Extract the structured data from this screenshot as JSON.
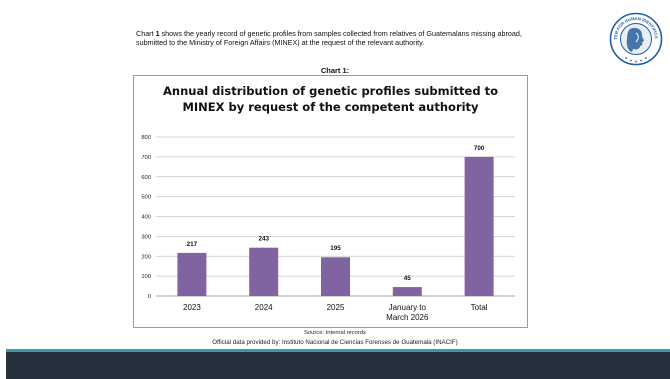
{
  "intro": {
    "chart_word": "Chart",
    "chart_number": "1",
    "text": "shows the yearly record of genetic profiles from samples collected from relatives of Guatemalans missing abroad, submitted to the Ministry of Foreign Affairs (MINEX) at the request of the relevant authority."
  },
  "chart_caption": "Chart 1:",
  "logo": {
    "text": "CENTER FOR HUMAN IDENTIFICATION",
    "colors": {
      "ring": "#1f5fa8",
      "inner": "#e9eef5",
      "profile": "#2a5f9e"
    }
  },
  "chart_data": {
    "type": "bar",
    "title_line1": "Annual distribution of genetic profiles submitted to",
    "title_line2": "MINEX by request of the competent authority",
    "categories": [
      [
        "2023"
      ],
      [
        "2024"
      ],
      [
        "2025"
      ],
      [
        "January to",
        "March 2026"
      ],
      [
        "Total"
      ]
    ],
    "values": [
      217,
      243,
      195,
      45,
      700
    ],
    "ylim": [
      0,
      800
    ],
    "yticks": [
      0,
      100,
      200,
      300,
      400,
      500,
      600,
      700,
      800
    ],
    "grid": true,
    "bar_color": "#8064a2",
    "xlabel": "",
    "ylabel": ""
  },
  "source": "Source: Internal records",
  "official": "Official data provided by: Instituto Nacional de Ciencias Forenses de Guatemala (INACIF)",
  "colors": {
    "accent_band": "#3f98a6",
    "footer_band": "#25323d"
  }
}
